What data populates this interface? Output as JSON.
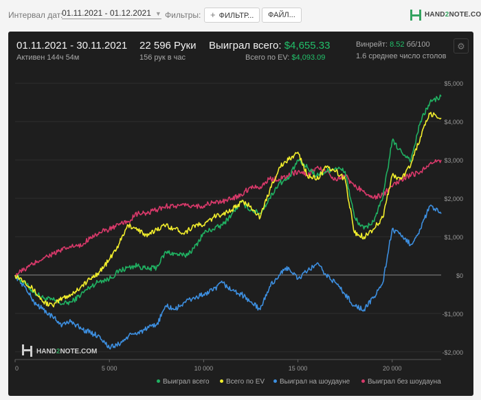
{
  "toolbar": {
    "date_label": "Интервал дат:",
    "date_range": "01.11.2021 - 01.12.2021",
    "filters_label": "Фильтры:",
    "filter_button": "ФИЛЬТР...",
    "file_button": "ФАЙЛ...",
    "logo_text_a": "HAND",
    "logo_text_b": "2",
    "logo_text_c": "NOTE.COM"
  },
  "stats": {
    "period": "01.11.2021 - 30.11.2021",
    "active": "Активен 144ч 54м",
    "hands": "22 596 Руки",
    "hands_per_hour": "156 рук в час",
    "won_label": "Выиграл всего:",
    "won_value": "$4,655.33",
    "ev_label": "Всего по EV:",
    "ev_value": "$4,093.09",
    "vinreit_label": "Винрейт:",
    "vinreit_value": "8.52",
    "vinreit_unit": "бб/100",
    "tables": "1.6 среднее число столов"
  },
  "watermark": {
    "a": "HAND",
    "b": "2",
    "c": "NOTE.COM"
  },
  "colors": {
    "total": "#20b162",
    "ev": "#f2ee2c",
    "showdown": "#3d8fe0",
    "nonshowdown": "#d8396a"
  },
  "chart_data": {
    "type": "line",
    "xlim": [
      0,
      22596
    ],
    "ylim": [
      -2200,
      5200
    ],
    "x_ticks": [
      0,
      5000,
      10000,
      15000,
      20000
    ],
    "x_tick_labels": [
      "0",
      "5 000",
      "10 000",
      "15 000",
      "20 000"
    ],
    "y_ticks": [
      5000,
      4000,
      3000,
      2000,
      1000,
      0,
      -1000,
      -2000
    ],
    "y_tick_labels": [
      "$5,000",
      "$4,000",
      "$3,000",
      "$2,000",
      "$1,000",
      "$0",
      "-$1,000",
      "-$2,000"
    ],
    "x": [
      0,
      500,
      1000,
      1500,
      2000,
      2500,
      3000,
      3500,
      4000,
      4500,
      5000,
      5500,
      6000,
      6500,
      7000,
      7500,
      8000,
      8500,
      9000,
      9500,
      10000,
      10500,
      11000,
      11500,
      12000,
      12500,
      13000,
      13500,
      14000,
      14500,
      15000,
      15500,
      16000,
      16500,
      17000,
      17500,
      18000,
      18500,
      19000,
      19500,
      20000,
      20500,
      21000,
      21500,
      22000,
      22596
    ],
    "series": [
      {
        "name": "Выиграл всего",
        "color_key": "total",
        "values": [
          0,
          -200,
          -450,
          -600,
          -650,
          -750,
          -700,
          -500,
          -300,
          -150,
          -100,
          100,
          200,
          250,
          150,
          200,
          600,
          550,
          500,
          700,
          1100,
          1200,
          1300,
          1600,
          1900,
          1700,
          1600,
          2000,
          2400,
          2500,
          3000,
          2800,
          2600,
          2700,
          2800,
          2700,
          1500,
          1200,
          1400,
          2000,
          3500,
          3200,
          3000,
          4000,
          4500,
          4655
        ]
      },
      {
        "name": "Всего по EV",
        "color_key": "ev",
        "values": [
          0,
          -150,
          -400,
          -700,
          -800,
          -600,
          -500,
          -300,
          -100,
          100,
          400,
          800,
          1300,
          1200,
          1000,
          1200,
          1300,
          1200,
          1100,
          1300,
          1300,
          1500,
          1600,
          1700,
          1900,
          1800,
          1500,
          2200,
          2800,
          3000,
          3200,
          2600,
          2500,
          2800,
          2700,
          2500,
          1100,
          1000,
          1200,
          1500,
          2600,
          2500,
          2900,
          3600,
          4200,
          4093
        ]
      },
      {
        "name": "Выиграл на шоудауне",
        "color_key": "showdown",
        "values": [
          0,
          -300,
          -700,
          -900,
          -1100,
          -1300,
          -1200,
          -1400,
          -1500,
          -1600,
          -1900,
          -1800,
          -1600,
          -1500,
          -1400,
          -1300,
          -800,
          -900,
          -700,
          -600,
          -500,
          -400,
          -200,
          -400,
          -500,
          -700,
          -900,
          -300,
          0,
          200,
          -100,
          100,
          300,
          0,
          -200,
          -500,
          -800,
          -900,
          -600,
          -200,
          1200,
          1000,
          800,
          1200,
          1800,
          1600
        ]
      },
      {
        "name": "Выиграл без шоудауна",
        "color_key": "nonshowdown",
        "values": [
          0,
          150,
          300,
          450,
          550,
          650,
          750,
          750,
          1000,
          1100,
          1200,
          1300,
          1400,
          1600,
          1600,
          1700,
          1800,
          1800,
          1800,
          1800,
          1800,
          1900,
          1900,
          2000,
          2100,
          2300,
          2300,
          2500,
          2500,
          2600,
          2700,
          2600,
          2800,
          2700,
          2500,
          2600,
          2300,
          2200,
          2000,
          2100,
          2300,
          2500,
          2600,
          2700,
          2900,
          3000
        ]
      }
    ]
  }
}
